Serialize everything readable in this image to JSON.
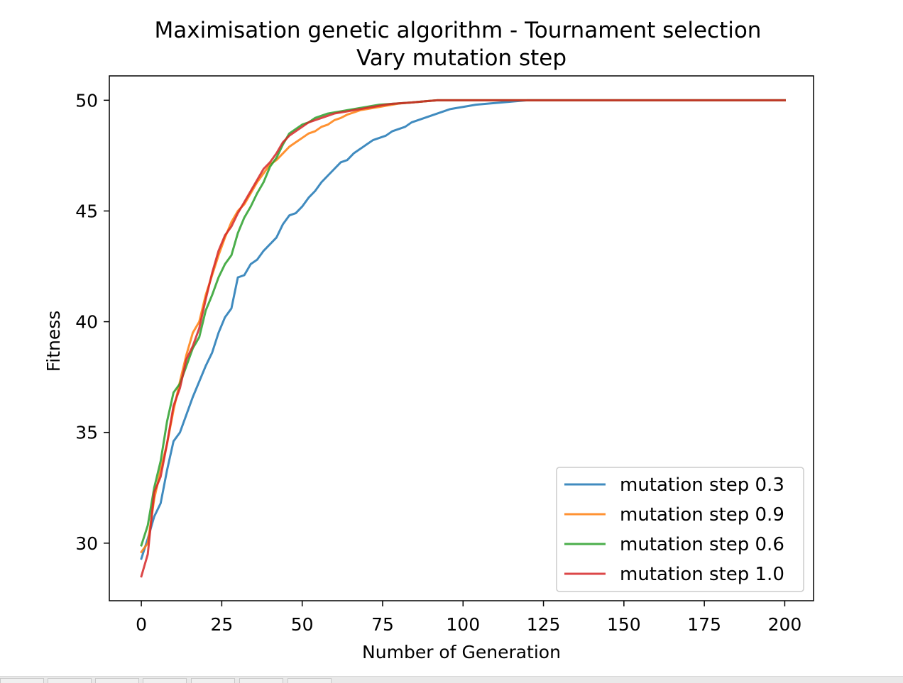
{
  "chart_data": {
    "type": "line",
    "title": "Maximisation genetic algorithm - Tournament selection",
    "subtitle": "Vary mutation step",
    "xlabel": "Number of Generation",
    "ylabel": "Fitness",
    "xlim": [
      -9.95,
      208.95
    ],
    "ylim": [
      27.4,
      51.1
    ],
    "xticks": [
      0,
      25,
      50,
      75,
      100,
      125,
      150,
      175,
      200
    ],
    "yticks": [
      30,
      35,
      40,
      45,
      50
    ],
    "grid": false,
    "legend_position": "lower-right",
    "series": [
      {
        "name": "mutation step 0.3",
        "color": "#1f77b4",
        "points": [
          [
            0,
            29.3
          ],
          [
            2,
            30.2
          ],
          [
            4,
            31.2
          ],
          [
            6,
            31.8
          ],
          [
            8,
            33.3
          ],
          [
            10,
            34.6
          ],
          [
            12,
            35.0
          ],
          [
            14,
            35.8
          ],
          [
            16,
            36.6
          ],
          [
            18,
            37.3
          ],
          [
            20,
            38.0
          ],
          [
            22,
            38.6
          ],
          [
            24,
            39.5
          ],
          [
            26,
            40.2
          ],
          [
            28,
            40.6
          ],
          [
            30,
            42.0
          ],
          [
            32,
            42.1
          ],
          [
            34,
            42.6
          ],
          [
            36,
            42.8
          ],
          [
            38,
            43.2
          ],
          [
            40,
            43.5
          ],
          [
            42,
            43.8
          ],
          [
            44,
            44.4
          ],
          [
            46,
            44.8
          ],
          [
            48,
            44.9
          ],
          [
            50,
            45.2
          ],
          [
            52,
            45.6
          ],
          [
            54,
            45.9
          ],
          [
            56,
            46.3
          ],
          [
            58,
            46.6
          ],
          [
            60,
            46.9
          ],
          [
            62,
            47.2
          ],
          [
            64,
            47.3
          ],
          [
            66,
            47.6
          ],
          [
            68,
            47.8
          ],
          [
            70,
            48.0
          ],
          [
            72,
            48.2
          ],
          [
            74,
            48.3
          ],
          [
            76,
            48.4
          ],
          [
            78,
            48.6
          ],
          [
            80,
            48.7
          ],
          [
            82,
            48.8
          ],
          [
            84,
            49.0
          ],
          [
            86,
            49.1
          ],
          [
            88,
            49.2
          ],
          [
            90,
            49.3
          ],
          [
            92,
            49.4
          ],
          [
            94,
            49.5
          ],
          [
            96,
            49.6
          ],
          [
            98,
            49.65
          ],
          [
            100,
            49.7
          ],
          [
            104,
            49.8
          ],
          [
            108,
            49.85
          ],
          [
            112,
            49.9
          ],
          [
            116,
            49.95
          ],
          [
            120,
            50.0
          ],
          [
            200,
            50.0
          ]
        ]
      },
      {
        "name": "mutation step 0.9",
        "color": "#ff7f0e",
        "points": [
          [
            0,
            29.6
          ],
          [
            2,
            30.0
          ],
          [
            4,
            32.0
          ],
          [
            6,
            33.3
          ],
          [
            8,
            34.5
          ],
          [
            10,
            36.0
          ],
          [
            12,
            37.3
          ],
          [
            14,
            38.5
          ],
          [
            16,
            39.5
          ],
          [
            18,
            40.0
          ],
          [
            20,
            41.2
          ],
          [
            22,
            42.1
          ],
          [
            24,
            43.0
          ],
          [
            26,
            43.8
          ],
          [
            28,
            44.5
          ],
          [
            30,
            45.0
          ],
          [
            32,
            45.3
          ],
          [
            34,
            45.8
          ],
          [
            36,
            46.3
          ],
          [
            38,
            46.7
          ],
          [
            40,
            47.1
          ],
          [
            42,
            47.3
          ],
          [
            44,
            47.6
          ],
          [
            46,
            47.9
          ],
          [
            48,
            48.1
          ],
          [
            50,
            48.3
          ],
          [
            52,
            48.5
          ],
          [
            54,
            48.6
          ],
          [
            56,
            48.8
          ],
          [
            58,
            48.9
          ],
          [
            60,
            49.1
          ],
          [
            62,
            49.2
          ],
          [
            64,
            49.35
          ],
          [
            66,
            49.45
          ],
          [
            68,
            49.55
          ],
          [
            70,
            49.6
          ],
          [
            72,
            49.65
          ],
          [
            74,
            49.7
          ],
          [
            76,
            49.75
          ],
          [
            78,
            49.8
          ],
          [
            80,
            49.85
          ],
          [
            84,
            49.9
          ],
          [
            88,
            49.95
          ],
          [
            92,
            50.0
          ],
          [
            200,
            50.0
          ]
        ]
      },
      {
        "name": "mutation step 0.6",
        "color": "#2ca02c",
        "points": [
          [
            0,
            29.9
          ],
          [
            2,
            30.8
          ],
          [
            4,
            32.5
          ],
          [
            6,
            33.7
          ],
          [
            8,
            35.5
          ],
          [
            10,
            36.8
          ],
          [
            12,
            37.2
          ],
          [
            14,
            38.0
          ],
          [
            16,
            38.8
          ],
          [
            18,
            39.3
          ],
          [
            20,
            40.5
          ],
          [
            22,
            41.2
          ],
          [
            24,
            42.0
          ],
          [
            26,
            42.6
          ],
          [
            28,
            43.0
          ],
          [
            30,
            44.0
          ],
          [
            32,
            44.7
          ],
          [
            34,
            45.2
          ],
          [
            36,
            45.8
          ],
          [
            38,
            46.3
          ],
          [
            40,
            47.0
          ],
          [
            42,
            47.4
          ],
          [
            44,
            48.0
          ],
          [
            46,
            48.5
          ],
          [
            48,
            48.7
          ],
          [
            50,
            48.9
          ],
          [
            52,
            49.0
          ],
          [
            54,
            49.2
          ],
          [
            56,
            49.3
          ],
          [
            58,
            49.4
          ],
          [
            60,
            49.45
          ],
          [
            62,
            49.5
          ],
          [
            64,
            49.55
          ],
          [
            66,
            49.6
          ],
          [
            68,
            49.65
          ],
          [
            70,
            49.7
          ],
          [
            72,
            49.75
          ],
          [
            74,
            49.8
          ],
          [
            76,
            49.82
          ],
          [
            78,
            49.84
          ],
          [
            80,
            49.86
          ],
          [
            84,
            49.9
          ],
          [
            88,
            49.95
          ],
          [
            92,
            50.0
          ],
          [
            200,
            50.0
          ]
        ]
      },
      {
        "name": "mutation step 1.0",
        "color": "#d62728",
        "points": [
          [
            0,
            28.5
          ],
          [
            2,
            29.5
          ],
          [
            4,
            32.3
          ],
          [
            6,
            33.0
          ],
          [
            8,
            34.5
          ],
          [
            10,
            36.2
          ],
          [
            12,
            37.0
          ],
          [
            14,
            38.3
          ],
          [
            16,
            38.9
          ],
          [
            18,
            39.7
          ],
          [
            20,
            41.0
          ],
          [
            22,
            42.2
          ],
          [
            24,
            43.2
          ],
          [
            26,
            43.9
          ],
          [
            28,
            44.3
          ],
          [
            30,
            44.9
          ],
          [
            32,
            45.4
          ],
          [
            34,
            45.9
          ],
          [
            36,
            46.4
          ],
          [
            38,
            46.9
          ],
          [
            40,
            47.2
          ],
          [
            42,
            47.6
          ],
          [
            44,
            48.1
          ],
          [
            46,
            48.4
          ],
          [
            48,
            48.6
          ],
          [
            50,
            48.8
          ],
          [
            52,
            49.0
          ],
          [
            54,
            49.1
          ],
          [
            56,
            49.2
          ],
          [
            58,
            49.3
          ],
          [
            60,
            49.4
          ],
          [
            62,
            49.45
          ],
          [
            64,
            49.5
          ],
          [
            66,
            49.55
          ],
          [
            68,
            49.6
          ],
          [
            70,
            49.65
          ],
          [
            72,
            49.7
          ],
          [
            74,
            49.75
          ],
          [
            76,
            49.8
          ],
          [
            78,
            49.84
          ],
          [
            80,
            49.86
          ],
          [
            84,
            49.9
          ],
          [
            88,
            49.95
          ],
          [
            92,
            50.0
          ],
          [
            200,
            50.0
          ]
        ]
      }
    ]
  }
}
